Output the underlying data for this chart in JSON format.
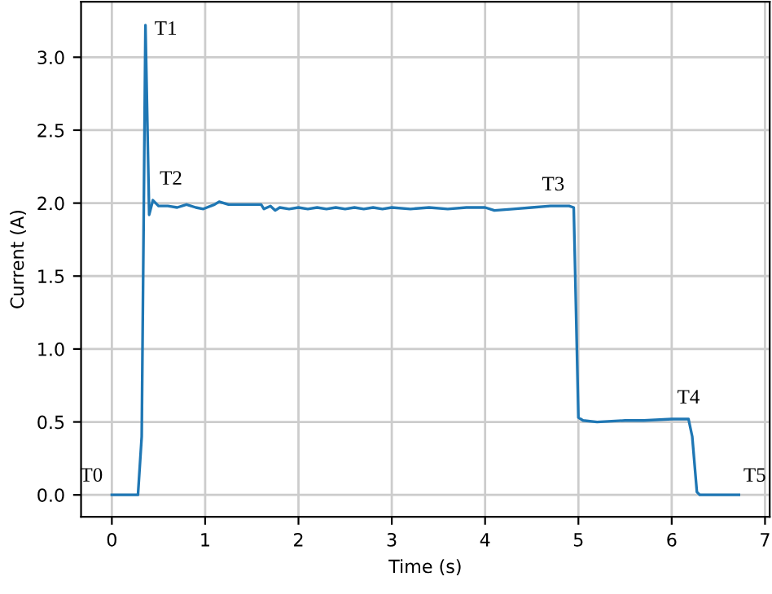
{
  "chart_data": {
    "type": "line",
    "xlabel": "Time (s)",
    "ylabel": "Current (A)",
    "x": [
      0,
      0.28,
      0.32,
      0.36,
      0.4,
      0.44,
      0.5,
      0.6,
      0.7,
      0.8,
      0.9,
      0.98,
      1.1,
      1.15,
      1.25,
      1.5,
      1.6,
      1.63,
      1.7,
      1.75,
      1.8,
      1.9,
      2.0,
      2.1,
      2.2,
      2.3,
      2.4,
      2.5,
      2.6,
      2.7,
      2.8,
      2.9,
      3.0,
      3.2,
      3.4,
      3.6,
      3.8,
      4.0,
      4.1,
      4.3,
      4.5,
      4.7,
      4.9,
      4.95,
      5.0,
      5.05,
      5.2,
      5.5,
      5.7,
      6.0,
      6.18,
      6.22,
      6.27,
      6.3,
      6.72
    ],
    "series": [
      {
        "color": "#1f77b4",
        "values": [
          0,
          0,
          0.4,
          3.22,
          1.92,
          2.02,
          1.98,
          1.98,
          1.97,
          1.99,
          1.97,
          1.96,
          1.99,
          2.01,
          1.99,
          1.99,
          1.99,
          1.96,
          1.98,
          1.95,
          1.97,
          1.96,
          1.97,
          1.96,
          1.97,
          1.96,
          1.97,
          1.96,
          1.97,
          1.96,
          1.97,
          1.96,
          1.97,
          1.96,
          1.97,
          1.96,
          1.97,
          1.97,
          1.95,
          1.96,
          1.97,
          1.98,
          1.98,
          1.97,
          0.53,
          0.51,
          0.5,
          0.51,
          0.51,
          0.52,
          0.52,
          0.4,
          0.02,
          0,
          0
        ]
      }
    ],
    "xlim": [
      -0.33,
      7.05
    ],
    "ylim": [
      -0.15,
      3.38
    ],
    "xticks": [
      0,
      1,
      2,
      3,
      4,
      5,
      6,
      7
    ],
    "yticks": [
      {
        "value": 0,
        "label": "0.0"
      },
      {
        "value": 0.5,
        "label": "0.5"
      },
      {
        "value": 1,
        "label": "1.0"
      },
      {
        "value": 1.5,
        "label": "1.5"
      },
      {
        "value": 2,
        "label": "2.0"
      },
      {
        "value": 2.5,
        "label": "2.5"
      },
      {
        "value": 3,
        "label": "3.0"
      }
    ],
    "grid": true,
    "legend": false,
    "marker": "none",
    "line_style": "solid",
    "annotations": [
      {
        "text": "T0",
        "x": 0,
        "y": 0
      },
      {
        "text": "T1",
        "x": 0.36,
        "y": 3.22
      },
      {
        "text": "T2",
        "x": 0.44,
        "y": 2.02
      },
      {
        "text": "T3",
        "x": 4.9,
        "y": 1.98
      },
      {
        "text": "T4",
        "x": 6.18,
        "y": 0.52
      },
      {
        "text": "T5",
        "x": 6.72,
        "y": 0
      }
    ]
  }
}
